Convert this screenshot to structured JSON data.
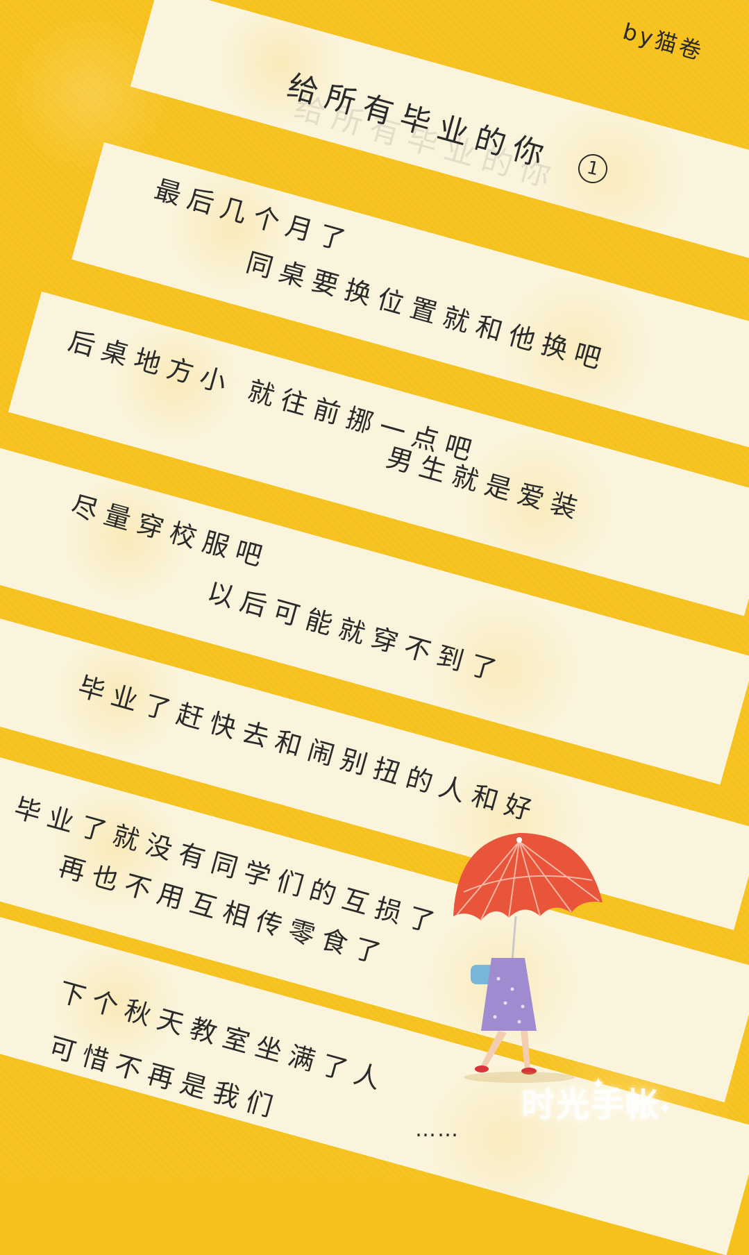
{
  "byline": "by猫卷",
  "title": "给所有毕业的你",
  "title_number": "1",
  "lines": [
    "最后几个月了",
    "同桌要换位置就和他换吧",
    "后桌地方小  就往前挪一点吧",
    "男生就是爱装",
    "尽量穿校服吧",
    "以后可能就穿不到了",
    "毕业了赶快去和闹别扭的人和好",
    "毕业了就没有同学们的互损了",
    "再也不用互相传零食了",
    "下个秋天教室坐满了人",
    "可惜不再是我们",
    "……"
  ],
  "watermark": "时光手帐",
  "colors": {
    "background": "#f7c11c",
    "paper": "#fbf4dc",
    "ink": "#2a2a2a",
    "umbrella": "#e8553a",
    "dress": "#a08bd0",
    "bag": "#7ab6d9"
  },
  "illustration": "girl-with-red-umbrella"
}
